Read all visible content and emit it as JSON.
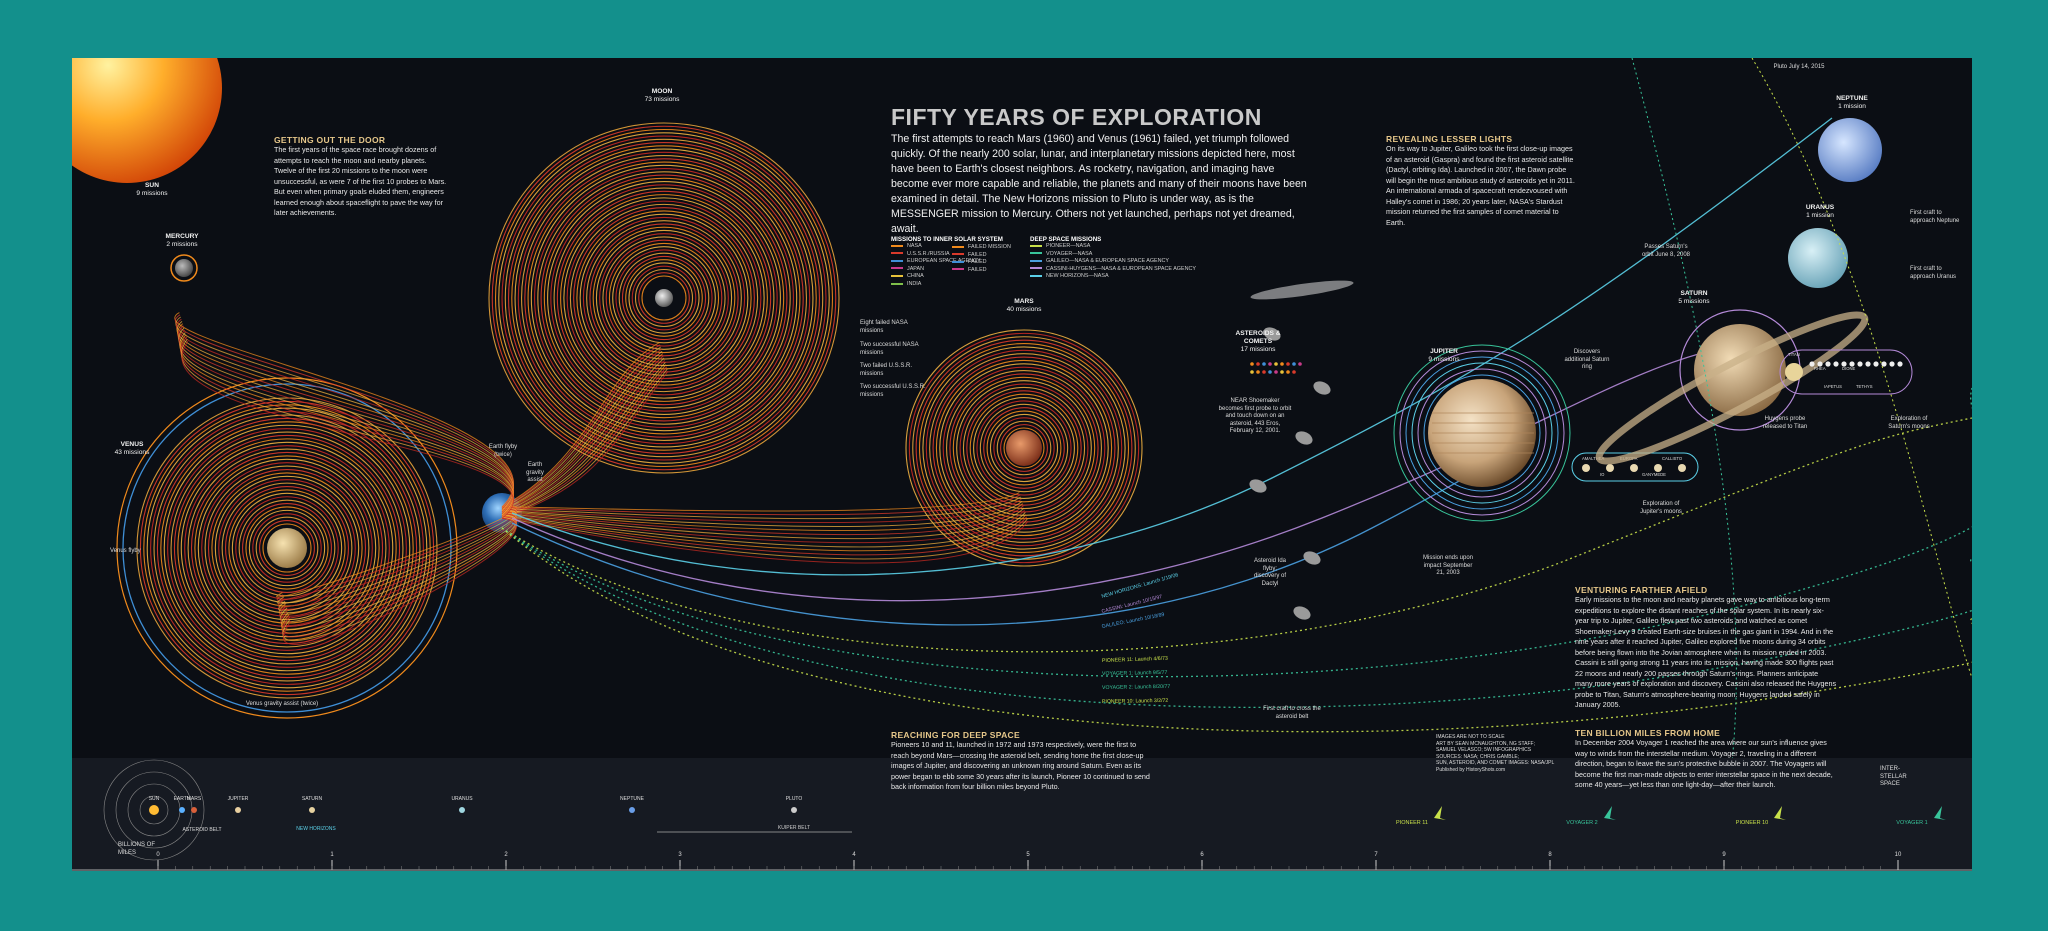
{
  "title": "FIFTY YEARS OF EXPLORATION",
  "intro": "The first attempts to reach Mars (1960) and Venus (1961) failed, yet triumph followed quickly. Of the nearly 200 solar, lunar, and interplanetary missions depicted here, most have been to Earth's closest neighbors. As rocketry, navigation, and imaging have become ever more capable and reliable, the planets and many of their moons have been examined in detail. The New Horizons mission to Pluto is under way, as is the MESSENGER mission to Mercury. Others not yet launched, perhaps not yet dreamed, await.",
  "sections": {
    "getting_out": {
      "heading": "GETTING OUT THE DOOR",
      "body": "The first years of the space race brought dozens of attempts to reach the moon and nearby planets. Twelve of the first 20 missions to the moon were unsuccessful, as were 7 of the first 10 probes to Mars. But even when primary goals eluded them, engineers learned enough about spaceflight to pave the way for later achievements."
    },
    "lesser_lights": {
      "heading": "REVEALING LESSER LIGHTS",
      "body": "On its way to Jupiter, Galileo took the first close-up images of an asteroid (Gaspra) and found the first asteroid satellite (Dactyl, orbiting Ida). Launched in 2007, the Dawn probe will begin the most ambitious study of asteroids yet in 2011. An international armada of spacecraft rendezvoused with Halley's comet in 1986; 20 years later, NASA's Stardust mission returned the first samples of comet material to Earth."
    },
    "farther_afield": {
      "heading": "VENTURING FARTHER AFIELD",
      "body": "Early missions to the moon and nearby planets gave way to ambitious long-term expeditions to explore the distant reaches of the solar system. In its nearly six-year trip to Jupiter, Galileo flew past two asteroids and watched as comet Shoemaker-Levy 9 created Earth-size bruises in the gas giant in 1994. And in the nine years after it reached Jupiter, Galileo explored five moons during 34 orbits before being flown into the Jovian atmosphere when its mission ended in 2003. Cassini is still going strong 11 years into its mission, having made 300 flights past 22 moons and nearly 200 passes through Saturn's rings. Planners anticipate many more years of exploration and discovery. Cassini also released the Huygens probe to Titan, Saturn's atmosphere-bearing moon. Huygens landed safely in January 2005."
    },
    "deep_space": {
      "heading": "REACHING FOR DEEP SPACE",
      "body": "Pioneers 10 and 11, launched in 1972 and 1973 respectively, were the first to reach beyond Mars—crossing the asteroid belt, sending home the first close-up images of Jupiter, and discovering an unknown ring around Saturn. Even as its power began to ebb some 30 years after its launch, Pioneer 10 continued to send back information from four billion miles beyond Pluto."
    },
    "ten_billion": {
      "heading": "TEN BILLION MILES FROM HOME",
      "body": "In December 2004 Voyager 1 reached the area where our sun's influence gives way to winds from the interstellar medium. Voyager 2, traveling in a different direction, began to leave the sun's protective bubble in 2007. The Voyagers will become the first man-made objects to enter interstellar space in the next decade, some 40 years—yet less than one light-day—after their launch."
    }
  },
  "credits": [
    "IMAGES ARE NOT TO SCALE",
    "ART BY SEAN MCNAUGHTON, NG STAFF;",
    "SAMUEL VELASCO; 5W INFOGRAPHICS",
    "SOURCES: NASA; CHRIS GAMBLE;",
    "SUN, ASTEROID, AND COMET IMAGES: NASA/JPL",
    "Published by HistoryShots.com"
  ],
  "legend": {
    "inner_heading": "MISSIONS TO INNER SOLAR SYSTEM",
    "inner": [
      {
        "label": "NASA",
        "color": "#f08a1c"
      },
      {
        "label": "U.S.S.R./RUSSIA",
        "color": "#d93a2b"
      },
      {
        "label": "EUROPEAN SPACE AGENCY",
        "color": "#3f8fd6"
      },
      {
        "label": "JAPAN",
        "color": "#c83a8a"
      },
      {
        "label": "CHINA",
        "color": "#e8c23a"
      },
      {
        "label": "INDIA",
        "color": "#7fbf4a"
      }
    ],
    "failed": [
      {
        "label": "FAILED MISSION",
        "color": "#f08a1c"
      },
      {
        "label": "FAILED",
        "color": "#d93a2b"
      },
      {
        "label": "FAILED",
        "color": "#3f8fd6"
      },
      {
        "label": "FAILED",
        "color": "#c83a8a"
      }
    ],
    "deep_heading": "DEEP SPACE MISSIONS",
    "deep": [
      {
        "label": "PIONEER—NASA",
        "color": "#c8e04a"
      },
      {
        "label": "VOYAGER—NASA",
        "color": "#38c49a"
      },
      {
        "label": "GALILEO—NASA & EUROPEAN SPACE AGENCY",
        "color": "#4aa0e0"
      },
      {
        "label": "CASSINI-HUYGENS—NASA & EUROPEAN SPACE AGENCY",
        "color": "#b48ad8"
      },
      {
        "label": "NEW HORIZONS—NASA",
        "color": "#5bd0e8"
      }
    ]
  },
  "bodies": {
    "sun": {
      "name": "SUN",
      "missions": "9 missions"
    },
    "mercury": {
      "name": "MERCURY",
      "missions": "2 missions"
    },
    "venus": {
      "name": "VENUS",
      "missions": "43 missions"
    },
    "moon": {
      "name": "MOON",
      "missions": "73 missions"
    },
    "mars": {
      "name": "MARS",
      "missions": "40 missions"
    },
    "asteroids": {
      "name": "ASTEROIDS & COMETS",
      "missions": "17 missions"
    },
    "jupiter": {
      "name": "JUPITER",
      "missions": "9 missions"
    },
    "saturn": {
      "name": "SATURN",
      "missions": "5 missions"
    },
    "uranus": {
      "name": "URANUS",
      "missions": "1 mission"
    },
    "neptune": {
      "name": "NEPTUNE",
      "missions": "1 mission"
    }
  },
  "annotations": {
    "earth_flyby": "Earth flyby (twice)",
    "earth_gravity": "Earth gravity assist",
    "venus_flyby": "Venus flyby",
    "venus_gravity": "Venus gravity assist (twice)",
    "moon_failed_nasa": "Eight failed NASA missions",
    "moon_success_nasa": "Two successful NASA missions",
    "moon_failed_ussr": "Two failed U.S.S.R. missions",
    "moon_success_ussr": "Two successful U.S.S.R. missions",
    "near": "NEAR Shoemaker becomes first probe to orbit and touch down on an asteroid, 443 Eros, February 12, 2001.",
    "ida": "Asteroid Ida flyby; discovery of Dactyl",
    "first_cross": "First craft to cross the asteroid belt",
    "mission_ends": "Mission ends upon impact September 21, 2003",
    "jupiter_moons_caption": "Exploration of Jupiter's moons",
    "saturn_ring": "Discovers additional Saturn ring",
    "passes_saturn": "Passes Saturn's orbit June 8, 2008",
    "huygens": "Huygens probe released to Titan",
    "saturn_moons_caption": "Exploration of Saturn's moons",
    "first_neptune": "First craft to approach Neptune",
    "first_uranus": "First craft to approach Uranus",
    "pluto_date": "Pluto July 14, 2015"
  },
  "jupiter_moons": [
    "AMALTHEA",
    "EUROPA",
    "CALLISTO",
    "IO",
    "GANYMEDE"
  ],
  "saturn_moons": [
    "TITAN",
    "RHEA",
    "DIONE",
    "IAPETUS",
    "TETHYS"
  ],
  "trajectories": [
    {
      "label": "NEW HORIZONS: Launch 1/19/06",
      "color": "#5bd0e8"
    },
    {
      "label": "CASSINI: Launch 10/15/97",
      "color": "#b48ad8"
    },
    {
      "label": "GALILEO: Launch 10/18/89",
      "color": "#4aa0e0"
    },
    {
      "label": "PIONEER 11: Launch 4/6/73",
      "color": "#c8e04a"
    },
    {
      "label": "VOYAGER 1: Launch 9/5/77",
      "color": "#38c49a"
    },
    {
      "label": "VOYAGER 2: Launch 8/20/77",
      "color": "#38c49a"
    },
    {
      "label": "PIONEER 10: Launch 3/2/72",
      "color": "#c8e04a"
    }
  ],
  "scale_bar": {
    "unit": "BILLIONS OF MILES",
    "ticks": [
      "0",
      "1",
      "2",
      "3",
      "4",
      "5",
      "6",
      "7",
      "8",
      "9",
      "10"
    ],
    "bodies": [
      "SUN",
      "EARTH",
      "MARS",
      "ASTEROID BELT",
      "JUPITER",
      "SATURN",
      "URANUS",
      "NEPTUNE",
      "PLUTO"
    ],
    "kuiper": "KUIPER BELT",
    "new_horizons": "NEW HORIZONS",
    "craft": [
      "PIONEER 11",
      "VOYAGER 2",
      "PIONEER 10",
      "VOYAGER 1"
    ],
    "interstellar": "INTER-STELLAR SPACE"
  }
}
